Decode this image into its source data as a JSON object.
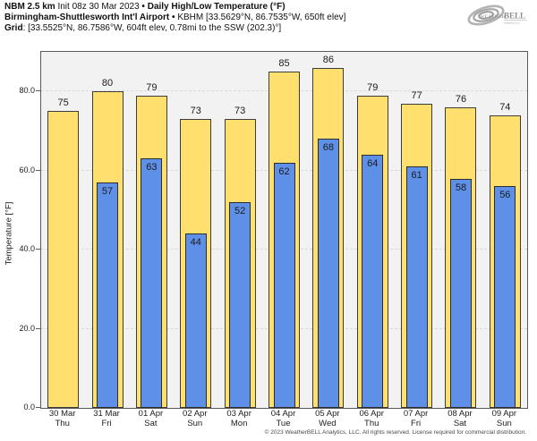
{
  "header": {
    "model": "NBM 2.5 km",
    "init": "Init 08z 30 Mar 2023",
    "separator": "•",
    "product": "Daily High/Low Temperature (°F)",
    "station_name": "Birmingham-Shuttlesworth Int'l Airport",
    "station_details": "KBHM [33.5629°N, 86.7535°W, 650ft elev]",
    "grid_label": "Grid",
    "grid_details": ": [33.5525°N, 86.7586°W, 604ft elev, 0.78mi to the SSW (202.3)°]"
  },
  "logo": {
    "text_weather": "WEATHER",
    "text_bell": "BELL",
    "tagline": "Analytics LLC"
  },
  "chart_data": {
    "type": "bar",
    "title": "NBM 2.5 km Daily High/Low Temperature (°F) — Birmingham-Shuttlesworth Int'l Airport (KBHM)",
    "ylabel": "Temperature [°F]",
    "ylim": [
      0,
      90
    ],
    "yticks": [
      0,
      20,
      40,
      60,
      80
    ],
    "ytick_labels": [
      "0.0",
      "20.0",
      "40.0",
      "60.0",
      "80.0"
    ],
    "grid": true,
    "legend": "none",
    "categories": [
      {
        "date": "30 Mar",
        "day": "Thu"
      },
      {
        "date": "31 Mar",
        "day": "Fri"
      },
      {
        "date": "01 Apr",
        "day": "Sat"
      },
      {
        "date": "02 Apr",
        "day": "Sun"
      },
      {
        "date": "03 Apr",
        "day": "Mon"
      },
      {
        "date": "04 Apr",
        "day": "Tue"
      },
      {
        "date": "05 Apr",
        "day": "Wed"
      },
      {
        "date": "06 Apr",
        "day": "Thu"
      },
      {
        "date": "07 Apr",
        "day": "Fri"
      },
      {
        "date": "08 Apr",
        "day": "Sat"
      },
      {
        "date": "09 Apr",
        "day": "Sun"
      }
    ],
    "series": [
      {
        "name": "Daily High",
        "color": "#ffdf6e",
        "values": [
          75,
          80,
          79,
          73,
          73,
          85,
          86,
          79,
          77,
          76,
          74
        ]
      },
      {
        "name": "Daily Low",
        "color": "#5e90e8",
        "values": [
          null,
          57,
          63,
          44,
          52,
          62,
          68,
          64,
          61,
          58,
          56
        ]
      }
    ]
  },
  "colors": {
    "high_fill": "#ffdf6e",
    "low_fill": "#5e90e8",
    "bar_border": "#3c3c3c",
    "plot_bg": "#f2f2f2",
    "grid_color": "#d9d9d9",
    "axis_color": "#5a5a5a",
    "text_color": "#1b1b1b",
    "logo_gray": "#a8a8a8"
  },
  "footer": {
    "copyright": "© 2023 WeatherBELL Analytics, LLC. All rights reserved. License required for commercial distribution."
  }
}
